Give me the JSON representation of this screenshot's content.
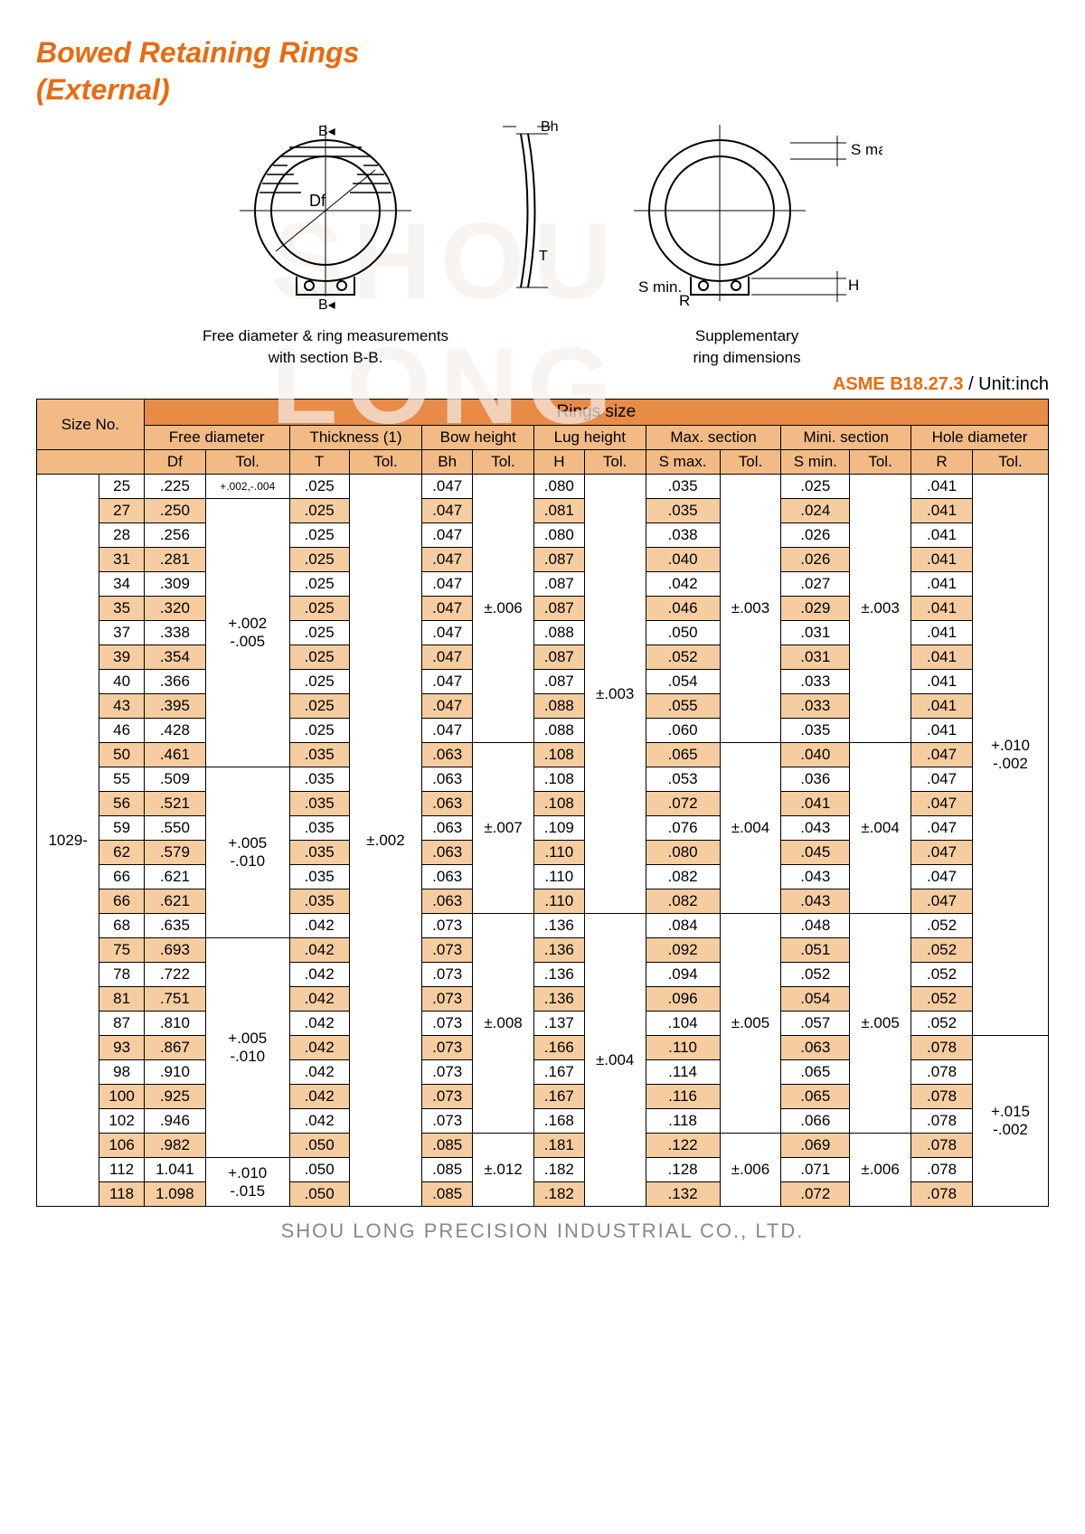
{
  "watermark": "SHOU LONG",
  "title": "Bowed Retaining Rings",
  "subtitle": "(External)",
  "diagrams": {
    "left": {
      "caption1": "Free diameter & ring measurements",
      "caption2": "with section B-B."
    },
    "right": {
      "caption1": "Supplementary",
      "caption2": "ring dimensions"
    }
  },
  "standard": {
    "code": "ASME B18.27.3",
    "unit": " / Unit:inch"
  },
  "footer": "SHOU LONG PRECISION INDUSTRIAL CO., LTD.",
  "colors": {
    "accent": "#e96b10",
    "hdr_dark": "#e88b47",
    "hdr_light": "#f2bb86",
    "row_alt": "#f6cda0",
    "border": "#000000",
    "text": "#000000",
    "footer": "#888888"
  },
  "table": {
    "headers": {
      "size": "Size No.",
      "ringsize": "Rings size",
      "freediameter": "Free diameter",
      "thickness": "Thickness (1)",
      "bowheight": "Bow height",
      "lugheight": "Lug height",
      "maxsection": "Max. section",
      "minisection": "Mini. section",
      "holediameter": "Hole diameter"
    },
    "sub": {
      "Df": "Df",
      "T": "T",
      "Bh": "Bh",
      "H": "H",
      "Smax": "S max.",
      "Smin": "S min.",
      "R": "R",
      "Tol": "Tol."
    },
    "series": "1029-",
    "rows": [
      {
        "n": "25",
        "Df": ".225",
        "T": ".025",
        "Bh": ".047",
        "H": ".080",
        "Smax": ".035",
        "Smin": ".025",
        "R": ".041"
      },
      {
        "n": "27",
        "Df": ".250",
        "T": ".025",
        "Bh": ".047",
        "H": ".081",
        "Smax": ".035",
        "Smin": ".024",
        "R": ".041"
      },
      {
        "n": "28",
        "Df": ".256",
        "T": ".025",
        "Bh": ".047",
        "H": ".080",
        "Smax": ".038",
        "Smin": ".026",
        "R": ".041"
      },
      {
        "n": "31",
        "Df": ".281",
        "T": ".025",
        "Bh": ".047",
        "H": ".087",
        "Smax": ".040",
        "Smin": ".026",
        "R": ".041"
      },
      {
        "n": "34",
        "Df": ".309",
        "T": ".025",
        "Bh": ".047",
        "H": ".087",
        "Smax": ".042",
        "Smin": ".027",
        "R": ".041"
      },
      {
        "n": "35",
        "Df": ".320",
        "T": ".025",
        "Bh": ".047",
        "H": ".087",
        "Smax": ".046",
        "Smin": ".029",
        "R": ".041"
      },
      {
        "n": "37",
        "Df": ".338",
        "T": ".025",
        "Bh": ".047",
        "H": ".088",
        "Smax": ".050",
        "Smin": ".031",
        "R": ".041"
      },
      {
        "n": "39",
        "Df": ".354",
        "T": ".025",
        "Bh": ".047",
        "H": ".087",
        "Smax": ".052",
        "Smin": ".031",
        "R": ".041"
      },
      {
        "n": "40",
        "Df": ".366",
        "T": ".025",
        "Bh": ".047",
        "H": ".087",
        "Smax": ".054",
        "Smin": ".033",
        "R": ".041"
      },
      {
        "n": "43",
        "Df": ".395",
        "T": ".025",
        "Bh": ".047",
        "H": ".088",
        "Smax": ".055",
        "Smin": ".033",
        "R": ".041"
      },
      {
        "n": "46",
        "Df": ".428",
        "T": ".025",
        "Bh": ".047",
        "H": ".088",
        "Smax": ".060",
        "Smin": ".035",
        "R": ".041"
      },
      {
        "n": "50",
        "Df": ".461",
        "T": ".035",
        "Bh": ".063",
        "H": ".108",
        "Smax": ".065",
        "Smin": ".040",
        "R": ".047"
      },
      {
        "n": "55",
        "Df": ".509",
        "T": ".035",
        "Bh": ".063",
        "H": ".108",
        "Smax": ".053",
        "Smin": ".036",
        "R": ".047"
      },
      {
        "n": "56",
        "Df": ".521",
        "T": ".035",
        "Bh": ".063",
        "H": ".108",
        "Smax": ".072",
        "Smin": ".041",
        "R": ".047"
      },
      {
        "n": "59",
        "Df": ".550",
        "T": ".035",
        "Bh": ".063",
        "H": ".109",
        "Smax": ".076",
        "Smin": ".043",
        "R": ".047"
      },
      {
        "n": "62",
        "Df": ".579",
        "T": ".035",
        "Bh": ".063",
        "H": ".110",
        "Smax": ".080",
        "Smin": ".045",
        "R": ".047"
      },
      {
        "n": "66",
        "Df": ".621",
        "T": ".035",
        "Bh": ".063",
        "H": ".110",
        "Smax": ".082",
        "Smin": ".043",
        "R": ".047"
      },
      {
        "n": "66",
        "Df": ".621",
        "T": ".035",
        "Bh": ".063",
        "H": ".110",
        "Smax": ".082",
        "Smin": ".043",
        "R": ".047"
      },
      {
        "n": "68",
        "Df": ".635",
        "T": ".042",
        "Bh": ".073",
        "H": ".136",
        "Smax": ".084",
        "Smin": ".048",
        "R": ".052"
      },
      {
        "n": "75",
        "Df": ".693",
        "T": ".042",
        "Bh": ".073",
        "H": ".136",
        "Smax": ".092",
        "Smin": ".051",
        "R": ".052"
      },
      {
        "n": "78",
        "Df": ".722",
        "T": ".042",
        "Bh": ".073",
        "H": ".136",
        "Smax": ".094",
        "Smin": ".052",
        "R": ".052"
      },
      {
        "n": "81",
        "Df": ".751",
        "T": ".042",
        "Bh": ".073",
        "H": ".136",
        "Smax": ".096",
        "Smin": ".054",
        "R": ".052"
      },
      {
        "n": "87",
        "Df": ".810",
        "T": ".042",
        "Bh": ".073",
        "H": ".137",
        "Smax": ".104",
        "Smin": ".057",
        "R": ".052"
      },
      {
        "n": "93",
        "Df": ".867",
        "T": ".042",
        "Bh": ".073",
        "H": ".166",
        "Smax": ".110",
        "Smin": ".063",
        "R": ".078"
      },
      {
        "n": "98",
        "Df": ".910",
        "T": ".042",
        "Bh": ".073",
        "H": ".167",
        "Smax": ".114",
        "Smin": ".065",
        "R": ".078"
      },
      {
        "n": "100",
        "Df": ".925",
        "T": ".042",
        "Bh": ".073",
        "H": ".167",
        "Smax": ".116",
        "Smin": ".065",
        "R": ".078"
      },
      {
        "n": "102",
        "Df": ".946",
        "T": ".042",
        "Bh": ".073",
        "H": ".168",
        "Smax": ".118",
        "Smin": ".066",
        "R": ".078"
      },
      {
        "n": "106",
        "Df": ".982",
        "T": ".050",
        "Bh": ".085",
        "H": ".181",
        "Smax": ".122",
        "Smin": ".069",
        "R": ".078"
      },
      {
        "n": "112",
        "Df": "1.041",
        "T": ".050",
        "Bh": ".085",
        "H": ".182",
        "Smax": ".128",
        "Smin": ".071",
        "R": ".078"
      },
      {
        "n": "118",
        "Df": "1.098",
        "T": ".050",
        "Bh": ".085",
        "H": ".182",
        "Smax": ".132",
        "Smin": ".072",
        "R": ".078"
      }
    ],
    "tol": {
      "Df": [
        {
          "row": 0,
          "span": 1,
          "v": "+.002,-.004"
        },
        {
          "row": 1,
          "span": 11,
          "v": "+.002\n-.005"
        },
        {
          "row": 12,
          "span": 7,
          "v": "+.005\n-.010"
        },
        {
          "row": 19,
          "span": 9,
          "v": "+.005\n-.010"
        },
        {
          "row": 28,
          "span": 2,
          "v": "+.010\n-.015"
        }
      ],
      "DfExtra": [
        {
          "row": 19,
          "span": 9,
          "skip": true
        }
      ],
      "T": [
        {
          "row": 0,
          "span": 30,
          "v": "±.002"
        }
      ],
      "Bh": [
        {
          "row": 0,
          "span": 11,
          "v": "±.006"
        },
        {
          "row": 11,
          "span": 7,
          "v": "±.007"
        },
        {
          "row": 18,
          "span": 9,
          "v": "±.008"
        },
        {
          "row": 27,
          "span": 3,
          "v": "±.012"
        }
      ],
      "H": [
        {
          "row": 0,
          "span": 18,
          "v": "±.003"
        },
        {
          "row": 18,
          "span": 12,
          "v": "±.004"
        }
      ],
      "Smax": [
        {
          "row": 0,
          "span": 11,
          "v": "±.003"
        },
        {
          "row": 11,
          "span": 7,
          "v": "±.004"
        },
        {
          "row": 18,
          "span": 9,
          "v": "±.005"
        },
        {
          "row": 27,
          "span": 3,
          "v": "±.006"
        }
      ],
      "Smin": [
        {
          "row": 0,
          "span": 11,
          "v": "±.003"
        },
        {
          "row": 11,
          "span": 7,
          "v": "±.004"
        },
        {
          "row": 18,
          "span": 9,
          "v": "±.005"
        },
        {
          "row": 27,
          "span": 3,
          "v": "±.006"
        }
      ],
      "R": [
        {
          "row": 0,
          "span": 23,
          "v": "+.010\n-.002"
        },
        {
          "row": 23,
          "span": 7,
          "v": "+.015\n-.002"
        }
      ]
    }
  }
}
